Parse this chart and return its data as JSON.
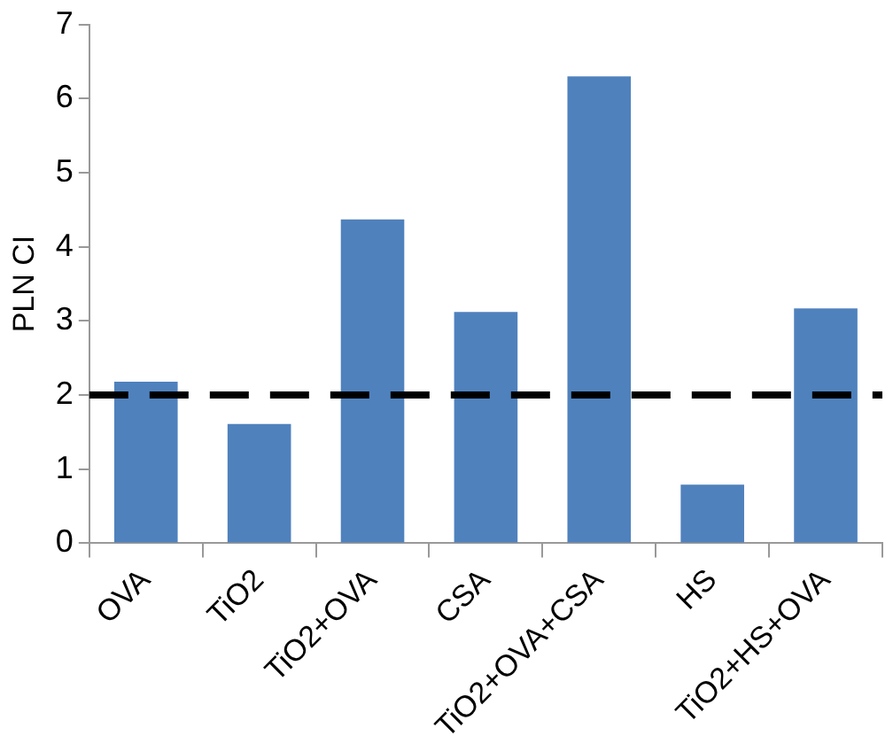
{
  "chart_data": {
    "type": "bar",
    "ylabel": "PLN CI",
    "categories": [
      "OVA",
      "TiO2",
      "TiO2+OVA",
      "CSA",
      "TiO2+OVA+CSA",
      "HS",
      "TiO2+HS+OVA"
    ],
    "values": [
      2.18,
      1.61,
      4.37,
      3.12,
      6.3,
      0.79,
      3.17
    ],
    "color": "#4f81bd",
    "ylim": [
      0,
      7
    ],
    "yticks": [
      0,
      1,
      2,
      3,
      4,
      5,
      6,
      7
    ],
    "grid": false,
    "legend": false,
    "ref_lines": [
      {
        "axis": "y",
        "value": 2,
        "color": "#000000",
        "line_style": "dashed"
      }
    ]
  }
}
